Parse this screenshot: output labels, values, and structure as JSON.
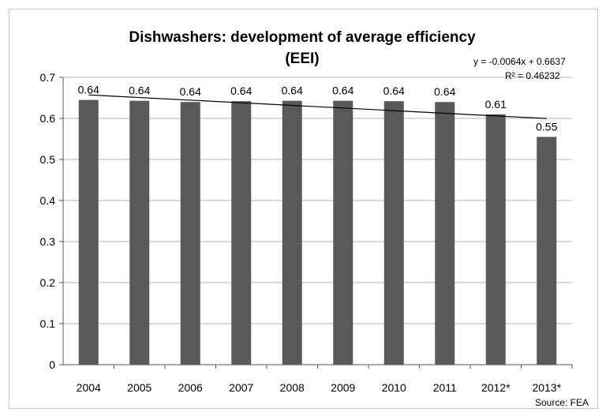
{
  "chart_data": {
    "type": "bar",
    "title": "Dishwashers: development of average efficiency",
    "subtitle": "(EEI)",
    "categories": [
      "2004",
      "2005",
      "2006",
      "2007",
      "2008",
      "2009",
      "2010",
      "2011",
      "2012*",
      "2013*"
    ],
    "values": [
      0.645,
      0.643,
      0.64,
      0.642,
      0.643,
      0.643,
      0.642,
      0.64,
      0.61,
      0.555
    ],
    "data_labels": [
      "0.64",
      "0.64",
      "0.64",
      "0.64",
      "0.64",
      "0.64",
      "0.64",
      "0.64",
      "0.61",
      "0.55"
    ],
    "ylim": [
      0,
      0.7
    ],
    "yticks": [
      0,
      0.1,
      0.2,
      0.3,
      0.4,
      0.5,
      0.6,
      0.7
    ],
    "ytick_labels": [
      "0",
      "0.1",
      "0.2",
      "0.3",
      "0.4",
      "0.5",
      "0.6",
      "0.7"
    ],
    "grid": true,
    "bar_color": "#595959",
    "trendline": {
      "equation": "y = -0.0064x + 0.6637",
      "r_squared": "R² = 0.46232",
      "slope": -0.0064,
      "intercept": 0.6637
    },
    "source": "Source: FEA"
  }
}
